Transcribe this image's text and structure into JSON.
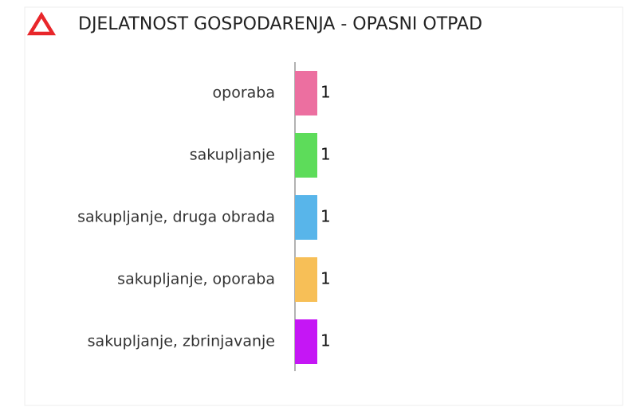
{
  "chart_data": {
    "type": "bar",
    "orientation": "horizontal",
    "title": "DJELATNOST GOSPODARENJA - OPASNI OTPAD",
    "categories": [
      "oporaba",
      "sakupljanje",
      "sakupljanje, druga obrada",
      "sakupljanje, oporaba",
      "sakupljanje, zbrinjavanje"
    ],
    "values": [
      1,
      1,
      1,
      1,
      1
    ],
    "colors": [
      "#ec6fa0",
      "#5ddc5a",
      "#58b5ea",
      "#f7bf57",
      "#c516f5"
    ]
  }
}
